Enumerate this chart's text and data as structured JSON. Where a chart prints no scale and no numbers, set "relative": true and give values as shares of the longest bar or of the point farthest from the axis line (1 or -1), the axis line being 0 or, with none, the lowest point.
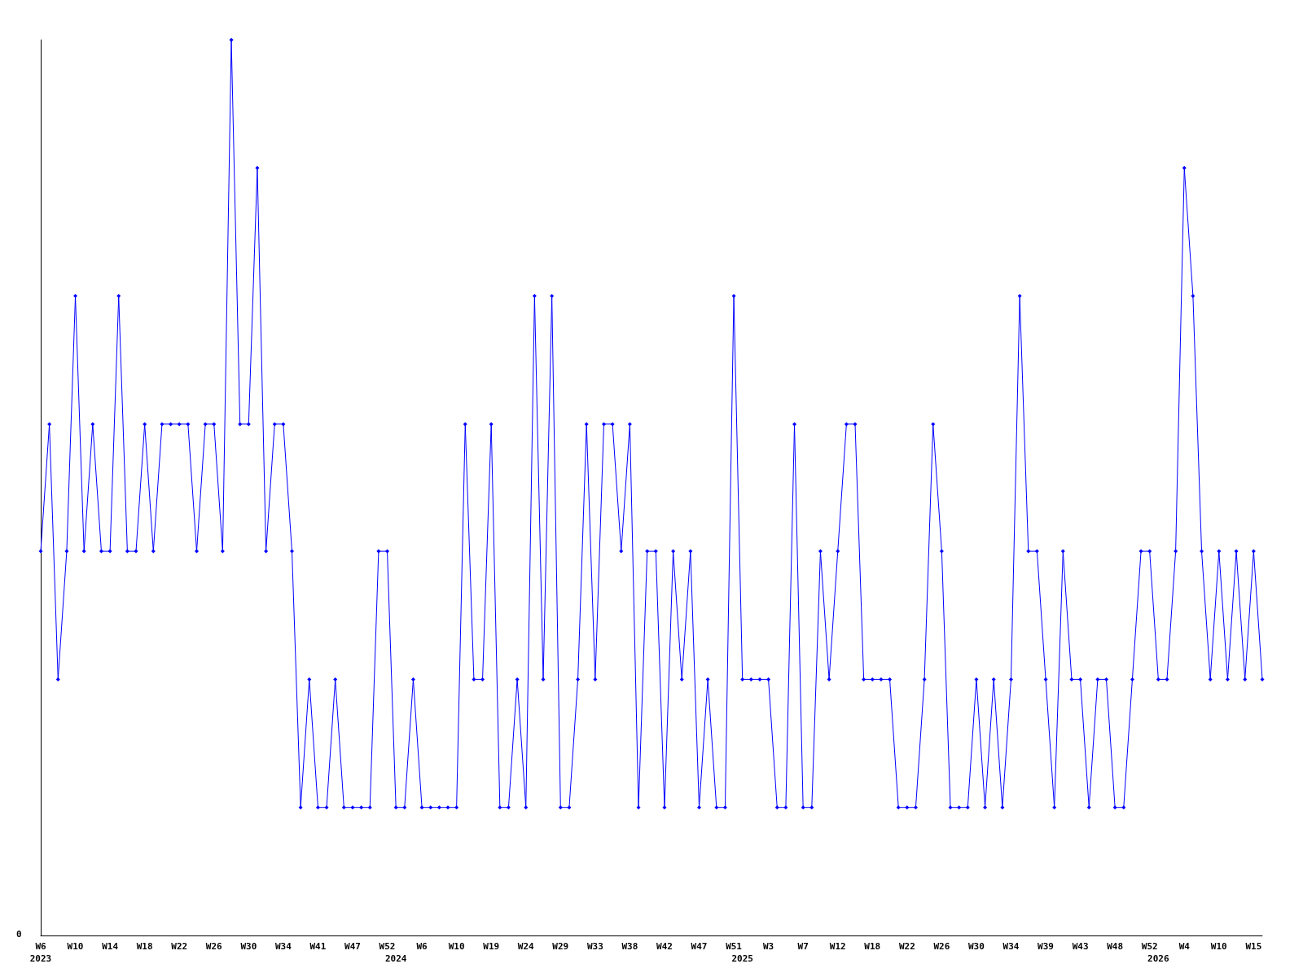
{
  "chart_data": {
    "type": "line",
    "relative": true,
    "marker": "diamond",
    "line_style": "solid",
    "annotations": [
      "0"
    ],
    "categories": [
      "W6\n2023",
      null,
      null,
      null,
      "W10",
      null,
      null,
      null,
      "W14",
      null,
      null,
      null,
      "W18",
      null,
      null,
      null,
      "W22",
      null,
      null,
      null,
      "W26",
      null,
      null,
      null,
      "W30",
      null,
      null,
      null,
      "W34",
      null,
      null,
      null,
      "W41",
      null,
      null,
      null,
      "W47",
      null,
      null,
      null,
      "W52",
      "\n2024",
      null,
      null,
      "W6",
      null,
      null,
      null,
      "W10",
      null,
      null,
      null,
      "W19",
      null,
      null,
      null,
      "W24",
      null,
      null,
      null,
      "W29",
      null,
      null,
      null,
      "W33",
      null,
      null,
      null,
      "W38",
      null,
      null,
      null,
      "W42",
      null,
      null,
      null,
      "W47",
      null,
      null,
      null,
      "W51",
      "\n2025",
      null,
      null,
      "W3",
      null,
      null,
      null,
      "W7",
      null,
      null,
      null,
      "W12",
      null,
      null,
      null,
      "W18",
      null,
      null,
      null,
      "W22",
      null,
      null,
      null,
      "W26",
      null,
      null,
      null,
      "W30",
      null,
      null,
      null,
      "W34",
      null,
      null,
      null,
      "W39",
      null,
      null,
      null,
      "W43",
      null,
      null,
      null,
      "W48",
      null,
      null,
      null,
      "W52",
      "\n2026",
      null,
      null,
      "W4",
      null,
      null,
      null,
      "W10",
      null,
      null,
      null,
      "W15",
      null
    ],
    "series": [
      {
        "color": "#0000ff",
        "values": [
          0.429,
          0.571,
          0.286,
          0.429,
          0.714,
          0.429,
          0.571,
          0.429,
          0.429,
          0.714,
          0.429,
          0.429,
          0.571,
          0.429,
          0.571,
          0.571,
          0.571,
          0.571,
          0.429,
          0.571,
          0.571,
          0.429,
          1,
          0.571,
          0.571,
          0.857,
          0.429,
          0.571,
          0.571,
          0.429,
          0.143,
          0.286,
          0.143,
          0.143,
          0.286,
          0.143,
          0.143,
          0.143,
          0.143,
          0.429,
          0.429,
          0.143,
          0.143,
          0.286,
          0.143,
          0.143,
          0.143,
          0.143,
          0.143,
          0.571,
          0.286,
          0.286,
          0.571,
          0.143,
          0.143,
          0.286,
          0.143,
          0.714,
          0.286,
          0.714,
          0.143,
          0.143,
          0.286,
          0.571,
          0.286,
          0.571,
          0.571,
          0.429,
          0.571,
          0.143,
          0.429,
          0.429,
          0.143,
          0.429,
          0.286,
          0.429,
          0.143,
          0.286,
          0.143,
          0.143,
          0.714,
          0.286,
          0.286,
          0.286,
          0.286,
          0.143,
          0.143,
          0.571,
          0.143,
          0.143,
          0.429,
          0.286,
          0.429,
          0.571,
          0.571,
          0.286,
          0.286,
          0.286,
          0.286,
          0.143,
          0.143,
          0.143,
          0.286,
          0.571,
          0.429,
          0.143,
          0.143,
          0.143,
          0.286,
          0.143,
          0.286,
          0.143,
          0.286,
          0.714,
          0.429,
          0.429,
          0.286,
          0.143,
          0.429,
          0.286,
          0.286,
          0.143,
          0.286,
          0.286,
          0.143,
          0.143,
          0.286,
          0.429,
          0.429,
          0.286,
          0.286,
          0.429,
          0.857,
          0.714,
          0.429,
          0.286,
          0.429,
          0.286,
          0.429,
          0.286,
          0.429,
          0.286
        ]
      }
    ]
  }
}
